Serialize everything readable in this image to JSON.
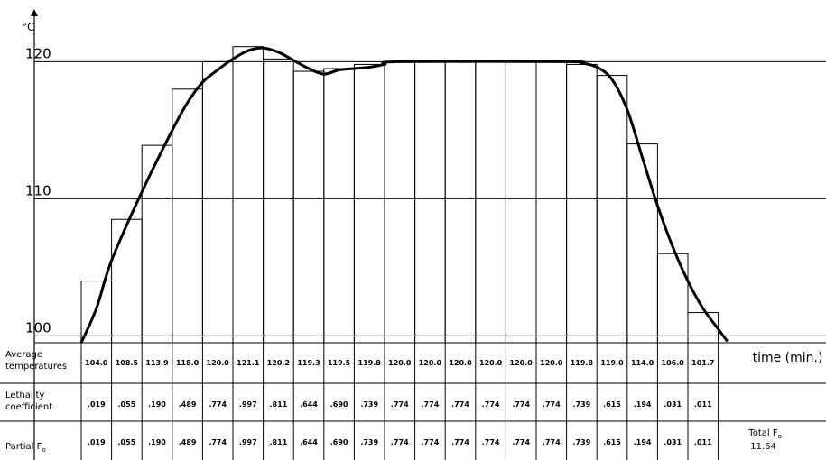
{
  "chart_data": {
    "type": "bar",
    "y_unit": "°C",
    "xlabel": "time (min.)",
    "y_ticks": [
      100,
      110,
      120
    ],
    "ylim": [
      99.5,
      124.5
    ],
    "averages": [
      104.0,
      108.5,
      113.9,
      118.0,
      120.0,
      121.1,
      120.2,
      119.3,
      119.5,
      119.8,
      120.0,
      120.0,
      120.0,
      120.0,
      120.0,
      120.0,
      119.8,
      119.0,
      114.0,
      106.0,
      101.7
    ],
    "curve": [
      [
        0.0,
        99.5
      ],
      [
        0.5,
        102.0
      ],
      [
        1.0,
        105.5
      ],
      [
        2.0,
        110.5
      ],
      [
        3.0,
        115.0
      ],
      [
        3.5,
        117.0
      ],
      [
        4.0,
        118.5
      ],
      [
        4.5,
        119.4
      ],
      [
        5.0,
        120.2
      ],
      [
        5.5,
        120.8
      ],
      [
        6.0,
        121.0
      ],
      [
        6.5,
        120.7
      ],
      [
        7.0,
        120.1
      ],
      [
        7.5,
        119.5
      ],
      [
        8.0,
        119.1
      ],
      [
        8.5,
        119.4
      ],
      [
        9.0,
        119.5
      ],
      [
        9.5,
        119.6
      ],
      [
        10.0,
        119.8
      ],
      [
        10.5,
        120.0
      ],
      [
        16.0,
        120.0
      ],
      [
        16.5,
        119.9
      ],
      [
        17.0,
        119.6
      ],
      [
        17.5,
        118.7
      ],
      [
        18.0,
        116.5
      ],
      [
        18.5,
        113.0
      ],
      [
        19.0,
        109.5
      ],
      [
        19.5,
        106.5
      ],
      [
        20.0,
        104.0
      ],
      [
        20.5,
        102.0
      ],
      [
        21.0,
        100.5
      ],
      [
        21.3,
        99.6
      ]
    ],
    "table_rows": [
      {
        "label_lines": [
          "Average",
          "temperatures"
        ],
        "values": [
          "104.0",
          "108.5",
          "113.9",
          "118.0",
          "120.0",
          "121.1",
          "120.2",
          "119.3",
          "119.5",
          "119.8",
          "120.0",
          "120.0",
          "120.0",
          "120.0",
          "120.0",
          "120.0",
          "119.8",
          "119.0",
          "114.0",
          "106.0",
          "101.7"
        ],
        "extra": [
          "time (min.)"
        ]
      },
      {
        "label_lines": [
          "Lethality",
          "coefficient"
        ],
        "values": [
          ".019",
          ".055",
          ".190",
          ".489",
          ".774",
          ".997",
          ".811",
          ".644",
          ".690",
          ".739",
          ".774",
          ".774",
          ".774",
          ".774",
          ".774",
          ".774",
          ".739",
          ".615",
          ".194",
          ".031",
          ".011"
        ],
        "extra": []
      },
      {
        "label_lines": [
          "Partial F",
          ""
        ],
        "values": [
          ".019",
          ".055",
          ".190",
          ".489",
          ".774",
          ".997",
          ".811",
          ".644",
          ".690",
          ".739",
          ".774",
          ".774",
          ".774",
          ".774",
          ".774",
          ".774",
          ".739",
          ".615",
          ".194",
          ".031",
          ".011"
        ],
        "extra": [
          "Total F",
          "11.64"
        ]
      }
    ],
    "subscript": "o"
  }
}
